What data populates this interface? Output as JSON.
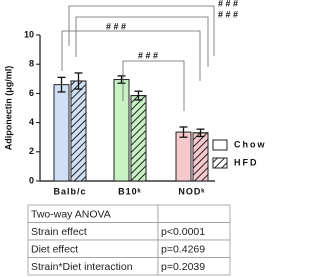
{
  "chart_data": {
    "type": "bar",
    "y_label": "Adiponectin (μg/ml)",
    "categories": [
      "Balb/c",
      "B10ᵏ",
      "NODᵏ"
    ],
    "category_colors": [
      "#cfe0f6",
      "#c9f2c4",
      "#f6c9cc"
    ],
    "series": [
      {
        "name": "Chow",
        "pattern": "solid",
        "values": [
          6.6,
          6.95,
          3.35
        ],
        "errors": [
          0.5,
          0.25,
          0.35
        ]
      },
      {
        "name": "HFD",
        "pattern": "hatch",
        "values": [
          6.85,
          5.85,
          3.3
        ],
        "errors": [
          0.55,
          0.3,
          0.25
        ]
      }
    ],
    "ylim": [
      0,
      10
    ],
    "yticks": [
      0,
      2,
      4,
      6,
      8,
      10
    ],
    "annotations": [
      "# # #",
      "# # #",
      "# # #",
      "# # #"
    ]
  },
  "table": {
    "rows": [
      [
        "Two-way ANOVA"
      ],
      [
        "Strain effect",
        "p<0.0001"
      ],
      [
        "Diet effect",
        "p=0.4269"
      ],
      [
        "Strain*Diet interaction",
        "p=0.2039"
      ]
    ]
  }
}
